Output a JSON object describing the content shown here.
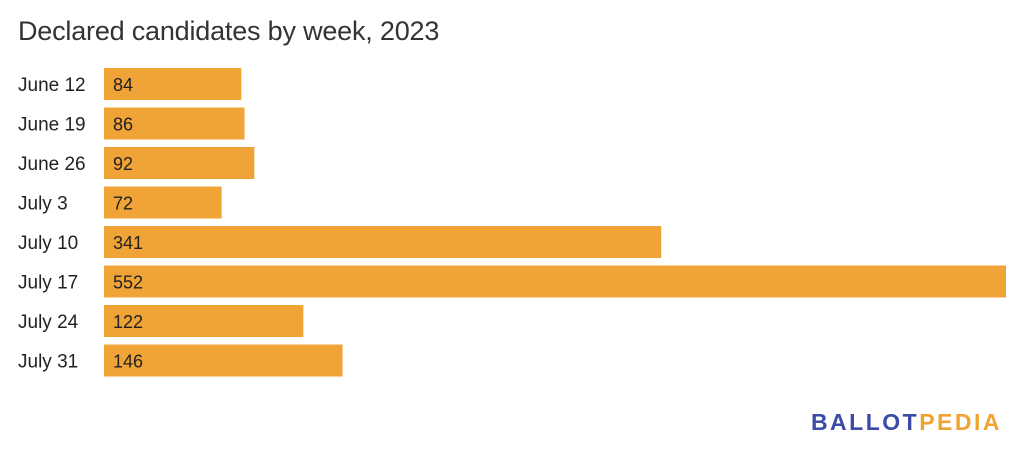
{
  "chart_data": {
    "type": "bar",
    "orientation": "horizontal",
    "title": "Declared candidates by week, 2023",
    "categories": [
      "June 12",
      "June 19",
      "June 26",
      "July 3",
      "July 10",
      "July 17",
      "July 24",
      "July 31"
    ],
    "values": [
      84,
      86,
      92,
      72,
      341,
      552,
      122,
      146
    ],
    "xlim": [
      0,
      552
    ],
    "grid": false,
    "bar_color": "#f0a336"
  },
  "logo": {
    "part1": "BALLOT",
    "part2": "PEDIA",
    "color1": "#3b4ba6",
    "color2": "#f0a332"
  }
}
